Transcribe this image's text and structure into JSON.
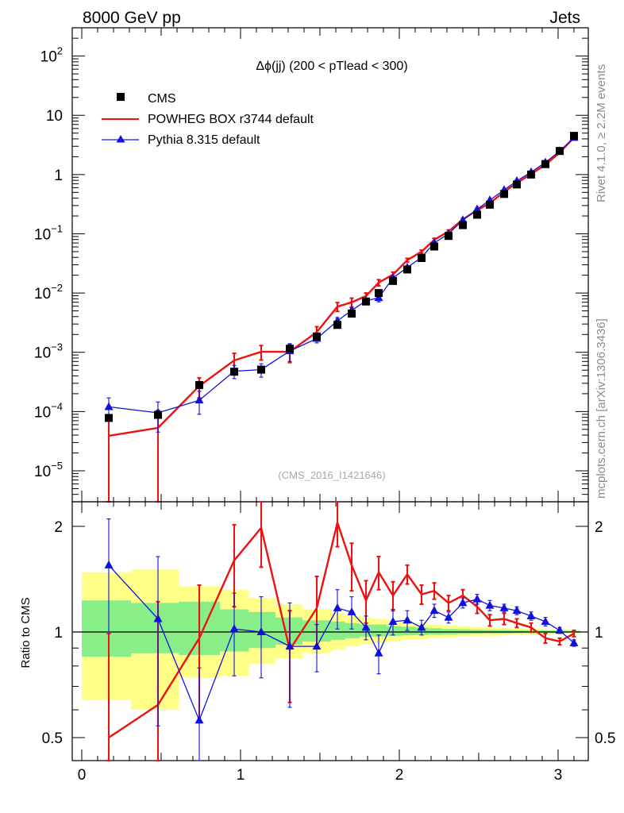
{
  "header": {
    "energy_label": "8000 GeV pp",
    "category_label": "Jets"
  },
  "side_labels": {
    "rivet": "Rivet 4.1.0, ≥ 2.2M events",
    "mcplots": "mcplots.cern.ch [arXiv:1306.3436]"
  },
  "chart_data": [
    {
      "type": "scatter",
      "title": "Δϕ(jj) (200 < pTlead <  300)",
      "watermark": "(CMS_2016_I1421646)",
      "yscale": "log",
      "xlim": [
        -0.05,
        3.2
      ],
      "ylim": [
        3e-06,
        300
      ],
      "yticks": [
        {
          "value": 1e-05,
          "base": "10",
          "exp": "−5"
        },
        {
          "value": 0.0001,
          "base": "10",
          "exp": "−4"
        },
        {
          "value": 0.001,
          "base": "10",
          "exp": "−3"
        },
        {
          "value": 0.01,
          "base": "10",
          "exp": "−2"
        },
        {
          "value": 0.1,
          "base": "10",
          "exp": "−1"
        },
        {
          "value": 1,
          "base": "1",
          "exp": ""
        },
        {
          "value": 10,
          "base": "10",
          "exp": ""
        },
        {
          "value": 100,
          "base": "10",
          "exp": "2"
        }
      ],
      "legend": [
        "CMS",
        "POWHEG BOX r3744 default",
        "Pythia 8.315 default"
      ],
      "x": [
        0.17,
        0.48,
        0.74,
        0.96,
        1.13,
        1.31,
        1.48,
        1.61,
        1.7,
        1.79,
        1.87,
        1.96,
        2.05,
        2.14,
        2.22,
        2.31,
        2.4,
        2.49,
        2.57,
        2.66,
        2.74,
        2.83,
        2.92,
        3.01,
        3.1
      ],
      "series": [
        {
          "name": "CMS",
          "values": [
            7.8e-05,
            8.8e-05,
            0.00028,
            0.00047,
            0.00051,
            0.00115,
            0.00185,
            0.0029,
            0.0045,
            0.0072,
            0.01,
            0.016,
            0.025,
            0.039,
            0.061,
            0.092,
            0.14,
            0.21,
            0.31,
            0.47,
            0.68,
            1.0,
            1.5,
            2.5,
            4.5
          ]
        },
        {
          "name": "POWHEG BOX r3744 default",
          "values": [
            3.9e-05,
            5.3e-05,
            0.00027,
            0.00073,
            0.00102,
            0.00102,
            0.0022,
            0.0059,
            0.007,
            0.0089,
            0.015,
            0.0205,
            0.036,
            0.05,
            0.079,
            0.11,
            0.175,
            0.25,
            0.33,
            0.51,
            0.72,
            1.02,
            1.47,
            2.35,
            4.2
          ],
          "errors": [
            3.8e-05,
            5.2e-05,
            0.0001,
            0.00023,
            0.00028,
            0.00035,
            0.0005,
            0.001,
            0.0012,
            0.0011,
            0.0018,
            0.002,
            0.0025,
            0.003,
            0.005,
            0.006,
            0.008,
            0.012,
            0.015,
            0.02,
            0.025,
            0.03,
            0.04,
            0.06,
            0.1
          ]
        },
        {
          "name": "Pythia 8.315 default",
          "values": [
            0.00012,
            9.5e-05,
            0.000155,
            0.00048,
            0.00051,
            0.00105,
            0.0017,
            0.0034,
            0.0051,
            0.0074,
            0.0083,
            0.018,
            0.027,
            0.04,
            0.07,
            0.1,
            0.17,
            0.26,
            0.37,
            0.55,
            0.78,
            1.1,
            1.6,
            2.5,
            4.2
          ],
          "errors": [
            5e-05,
            5e-05,
            6.5e-05,
            0.00012,
            0.00013,
            0.00035,
            0.00026,
            0.00045,
            0.00055,
            0.0006,
            0.0012,
            0.0014,
            0.0016,
            0.002,
            0.003,
            0.004,
            0.006,
            0.01,
            0.015,
            0.02,
            0.025,
            0.03,
            0.04,
            0.05,
            0.1
          ]
        }
      ]
    },
    {
      "type": "scatter",
      "ylabel": "Ratio to CMS",
      "yscale": "log",
      "xlim": [
        -0.05,
        3.2
      ],
      "ylim": [
        0.43,
        2.35
      ],
      "xticks": [
        "0",
        "1",
        "2",
        "3"
      ],
      "yticks": [
        {
          "value": 0.5,
          "label": "0.5"
        },
        {
          "value": 1,
          "label": "1"
        },
        {
          "value": 2,
          "label": "2"
        }
      ],
      "x": [
        0.17,
        0.48,
        0.74,
        0.96,
        1.13,
        1.31,
        1.48,
        1.61,
        1.7,
        1.79,
        1.87,
        1.96,
        2.05,
        2.14,
        2.22,
        2.31,
        2.4,
        2.49,
        2.57,
        2.66,
        2.74,
        2.83,
        2.92,
        3.01,
        3.1
      ],
      "bins": [
        0.0,
        0.31,
        0.61,
        0.87,
        1.05,
        1.22,
        1.39,
        1.57,
        1.66,
        1.75,
        1.83,
        1.92,
        2.01,
        2.09,
        2.18,
        2.27,
        2.36,
        2.44,
        2.53,
        2.62,
        2.71,
        2.79,
        2.88,
        2.97,
        3.05,
        3.14
      ],
      "band_inner": [
        [
          0.85,
          1.23
        ],
        [
          0.87,
          1.21
        ],
        [
          0.86,
          1.22
        ],
        [
          0.88,
          1.16
        ],
        [
          0.9,
          1.14
        ],
        [
          0.92,
          1.1
        ],
        [
          0.94,
          1.08
        ],
        [
          0.95,
          1.07
        ],
        [
          0.96,
          1.06
        ],
        [
          0.97,
          1.05
        ],
        [
          0.97,
          1.05
        ],
        [
          0.975,
          1.04
        ],
        [
          0.978,
          1.035
        ],
        [
          0.98,
          1.03
        ],
        [
          0.983,
          1.025
        ],
        [
          0.985,
          1.02
        ],
        [
          0.987,
          1.018
        ],
        [
          0.988,
          1.016
        ],
        [
          0.99,
          1.014
        ],
        [
          0.99,
          1.013
        ],
        [
          0.992,
          1.012
        ],
        [
          0.992,
          1.011
        ],
        [
          0.993,
          1.01
        ],
        [
          0.994,
          1.009
        ],
        [
          0.995,
          1.008
        ]
      ],
      "band_outer": [
        [
          0.64,
          1.48
        ],
        [
          0.6,
          1.51
        ],
        [
          0.74,
          1.35
        ],
        [
          0.75,
          1.32
        ],
        [
          0.81,
          1.25
        ],
        [
          0.84,
          1.2
        ],
        [
          0.87,
          1.16
        ],
        [
          0.89,
          1.13
        ],
        [
          0.91,
          1.11
        ],
        [
          0.92,
          1.1
        ],
        [
          0.93,
          1.09
        ],
        [
          0.94,
          1.08
        ],
        [
          0.95,
          1.07
        ],
        [
          0.955,
          1.06
        ],
        [
          0.96,
          1.05
        ],
        [
          0.965,
          1.045
        ],
        [
          0.97,
          1.04
        ],
        [
          0.972,
          1.035
        ],
        [
          0.975,
          1.03
        ],
        [
          0.978,
          1.027
        ],
        [
          0.98,
          1.024
        ],
        [
          0.982,
          1.02
        ],
        [
          0.984,
          1.018
        ],
        [
          0.986,
          1.016
        ],
        [
          0.988,
          1.014
        ]
      ],
      "series": [
        {
          "name": "POWHEG BOX r3744 default",
          "values": [
            0.5,
            0.62,
            0.96,
            1.6,
            1.98,
            0.89,
            1.17,
            2.05,
            1.55,
            1.23,
            1.48,
            1.27,
            1.46,
            1.28,
            1.31,
            1.21,
            1.27,
            1.18,
            1.08,
            1.09,
            1.06,
            1.03,
            0.96,
            0.94,
            0.99
          ],
          "errors": [
            0.49,
            0.6,
            0.4,
            0.42,
            0.45,
            0.26,
            0.27,
            0.3,
            0.24,
            0.17,
            0.16,
            0.12,
            0.09,
            0.08,
            0.07,
            0.06,
            0.05,
            0.05,
            0.04,
            0.04,
            0.03,
            0.03,
            0.03,
            0.02,
            0.02
          ]
        },
        {
          "name": "Pythia 8.315 default",
          "values": [
            1.55,
            1.09,
            0.56,
            1.02,
            1.0,
            0.91,
            0.91,
            1.17,
            1.14,
            1.03,
            0.87,
            1.07,
            1.08,
            1.03,
            1.15,
            1.1,
            1.21,
            1.24,
            1.19,
            1.17,
            1.15,
            1.11,
            1.07,
            1.01,
            0.93
          ],
          "errors": [
            0.55,
            0.55,
            0.23,
            0.27,
            0.26,
            0.3,
            0.14,
            0.15,
            0.12,
            0.08,
            0.11,
            0.09,
            0.07,
            0.05,
            0.05,
            0.04,
            0.04,
            0.04,
            0.04,
            0.03,
            0.03,
            0.03,
            0.03,
            0.02,
            0.02
          ]
        }
      ]
    }
  ]
}
